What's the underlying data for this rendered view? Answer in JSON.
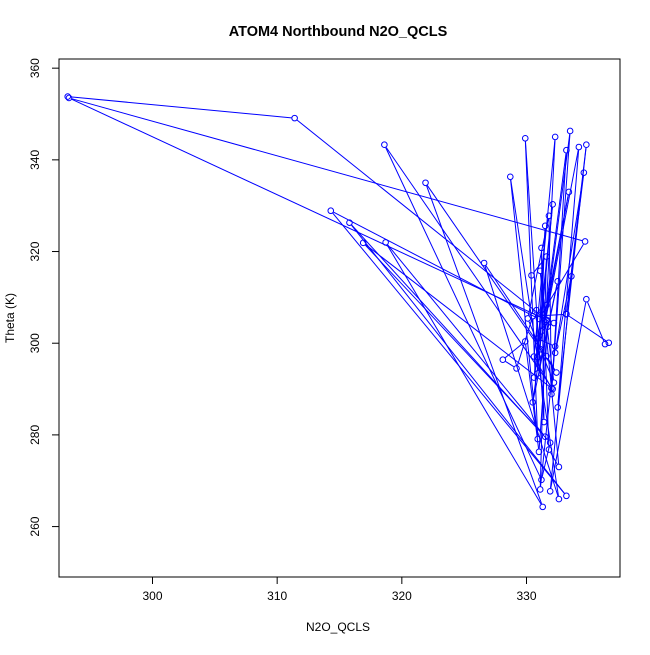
{
  "chart_data": {
    "type": "line",
    "title": "ATOM4 Northbound N2O_QCLS",
    "xlabel": "N2O_QCLS",
    "ylabel": "Theta (K)",
    "xlim": [
      292.5,
      337.5
    ],
    "ylim": [
      249,
      362
    ],
    "xticks": [
      300,
      310,
      320,
      330
    ],
    "yticks": [
      260,
      280,
      300,
      320,
      340,
      360
    ],
    "grid": false,
    "markers": "open-circle",
    "series": [
      {
        "color": "#0000ff",
        "points": [
          [
            293.2,
            353.8
          ],
          [
            311.4,
            349.1
          ],
          [
            331.6,
            305.1
          ],
          [
            293.3,
            353.5
          ],
          [
            334.7,
            322.2
          ],
          [
            331.0,
            305.3
          ],
          [
            314.3,
            328.9
          ],
          [
            333.2,
            266.7
          ],
          [
            315.8,
            326.3
          ],
          [
            331.9,
            278.3
          ],
          [
            331.2,
            270.2
          ],
          [
            318.6,
            343.3
          ],
          [
            332.1,
            290.0
          ],
          [
            316.9,
            321.9
          ],
          [
            331.5,
            279.6
          ],
          [
            318.7,
            322.0
          ],
          [
            331.3,
            264.3
          ],
          [
            321.9,
            335.0
          ],
          [
            332.4,
            293.6
          ],
          [
            331.6,
            297.2
          ],
          [
            326.6,
            317.5
          ],
          [
            332.6,
            266.0
          ],
          [
            328.7,
            336.3
          ],
          [
            330.9,
            279.1
          ],
          [
            330.5,
            305.9
          ],
          [
            329.9,
            344.7
          ],
          [
            331.4,
            282.8
          ],
          [
            331.2,
            320.8
          ],
          [
            331.8,
            276.8
          ],
          [
            332.6,
            273.0
          ],
          [
            331.1,
            315.8
          ],
          [
            332.2,
            291.4
          ],
          [
            330.1,
            305.4
          ],
          [
            331.8,
            327.8
          ],
          [
            332.0,
            290.2
          ],
          [
            330.6,
            297.1
          ],
          [
            332.3,
            345.0
          ],
          [
            331.6,
            308.3
          ],
          [
            333.2,
            342.1
          ],
          [
            332.0,
            288.9
          ],
          [
            333.5,
            346.3
          ],
          [
            331.5,
            304.6
          ],
          [
            334.2,
            342.8
          ],
          [
            332.5,
            286.0
          ],
          [
            334.8,
            343.3
          ],
          [
            333.2,
            306.4
          ],
          [
            334.6,
            337.2
          ],
          [
            332.3,
            297.9
          ],
          [
            333.6,
            314.6
          ],
          [
            331.9,
            267.7
          ],
          [
            334.8,
            309.6
          ],
          [
            336.3,
            299.8
          ],
          [
            336.6,
            300.1
          ],
          [
            333.2,
            306.3
          ],
          [
            330.5,
            305.9
          ],
          [
            329.2,
            294.5
          ],
          [
            328.1,
            296.4
          ],
          [
            329.9,
            300.4
          ],
          [
            331.0,
            276.3
          ],
          [
            331.7,
            303.6
          ],
          [
            332.2,
            304.4
          ],
          [
            330.8,
            307.2
          ],
          [
            330.9,
            293.4
          ],
          [
            332.5,
            313.5
          ],
          [
            330.5,
            287.1
          ],
          [
            331.1,
            298.7
          ],
          [
            331.5,
            325.6
          ],
          [
            330.9,
            297.0
          ],
          [
            332.1,
            330.3
          ],
          [
            330.6,
            292.5
          ],
          [
            333.4,
            333.0
          ],
          [
            331.2,
            302.6
          ],
          [
            330.9,
            301.0
          ],
          [
            332.3,
            299.3
          ],
          [
            331.1,
            268.1
          ],
          [
            331.6,
            318.9
          ],
          [
            330.4,
            314.8
          ]
        ]
      }
    ]
  }
}
